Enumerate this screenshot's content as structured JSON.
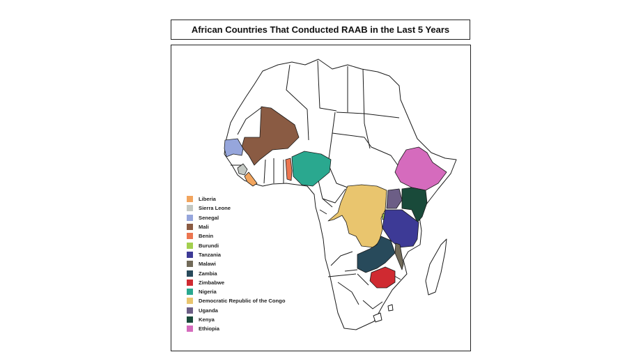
{
  "title": "African Countries That Conducted RAAB in the Last 5 Years",
  "legend": [
    {
      "country": "Liberia",
      "color": "#f2a55e"
    },
    {
      "country": "Sierra Leone",
      "color": "#c3c8c3"
    },
    {
      "country": "Senegal",
      "color": "#96a6dc"
    },
    {
      "country": "Mali",
      "color": "#8a5b43"
    },
    {
      "country": "Benin",
      "color": "#ec7550"
    },
    {
      "country": "Burundi",
      "color": "#a3cf4f"
    },
    {
      "country": "Tanzania",
      "color": "#3d3a96"
    },
    {
      "country": "Malawi",
      "color": "#716a59"
    },
    {
      "country": "Zambia",
      "color": "#284a5b"
    },
    {
      "country": "Zimbabwe",
      "color": "#cf2a31"
    },
    {
      "country": "Nigeria",
      "color": "#2aa88f"
    },
    {
      "country": "Democratic Republic of the Congo",
      "color": "#e9c56e"
    },
    {
      "country": "Uganda",
      "color": "#6c5e86"
    },
    {
      "country": "Kenya",
      "color": "#194a3a"
    },
    {
      "country": "Ethiopia",
      "color": "#d56bbd"
    }
  ]
}
